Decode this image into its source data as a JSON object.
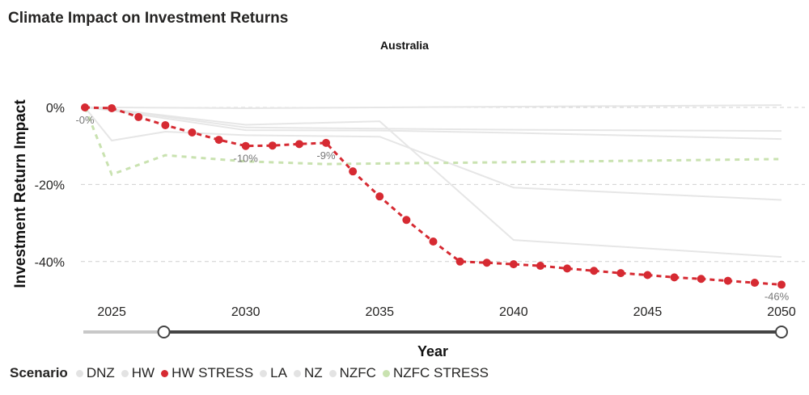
{
  "header": {
    "title": "Climate Impact on Investment Returns",
    "subtitle": "Australia"
  },
  "chart_data": {
    "type": "line",
    "title": "Australia",
    "xlabel": "Year",
    "ylabel": "Investment Return Impact",
    "xlim": [
      2024,
      2050
    ],
    "ylim": [
      -50,
      3
    ],
    "x_ticks": [
      "2025",
      "2030",
      "2035",
      "2040",
      "2045",
      "2050"
    ],
    "y_ticks": [
      "0%",
      "-20%",
      "-40%"
    ],
    "y_tick_values": [
      0,
      -20,
      -40
    ],
    "grid": "horizontal dashed",
    "legend_title": "Scenario",
    "legend_position": "bottom-left",
    "series": [
      {
        "name": "DNZ",
        "color": "#e6e6e6",
        "style": "solid",
        "x": [
          2024,
          2025,
          2030,
          2035,
          2040,
          2050
        ],
        "y": [
          0,
          0,
          -0.2,
          0,
          0.2,
          0.6
        ]
      },
      {
        "name": "HW",
        "color": "#e6e6e6",
        "style": "solid",
        "x": [
          2024,
          2025,
          2030,
          2035,
          2040,
          2050
        ],
        "y": [
          0,
          -0.5,
          -4.5,
          -3.6,
          -34.4,
          -38.8
        ]
      },
      {
        "name": "HW STRESS",
        "color": "#d62a32",
        "style": "dotted-markers",
        "x": [
          2024,
          2025,
          2026,
          2027,
          2028,
          2029,
          2030,
          2031,
          2032,
          2033,
          2034,
          2035,
          2036,
          2037,
          2038,
          2039,
          2040,
          2041,
          2042,
          2043,
          2044,
          2045,
          2046,
          2047,
          2048,
          2049,
          2050
        ],
        "y": [
          0,
          -0.2,
          -2.5,
          -4.6,
          -6.5,
          -8.4,
          -10,
          -9.9,
          -9.5,
          -9.2,
          -16.6,
          -23.1,
          -29.2,
          -34.8,
          -40,
          -40.3,
          -40.7,
          -41.1,
          -41.8,
          -42.4,
          -43,
          -43.5,
          -44.1,
          -44.5,
          -45,
          -45.5,
          -46
        ],
        "data_labels": [
          {
            "x": 2024,
            "text": "-0%"
          },
          {
            "x": 2030,
            "text": "-10%"
          },
          {
            "x": 2033,
            "text": "-9%"
          },
          {
            "x": 2050,
            "text": "-46%"
          }
        ]
      },
      {
        "name": "LA",
        "color": "#e6e6e6",
        "style": "solid",
        "x": [
          2024,
          2025,
          2030,
          2035,
          2040,
          2050
        ],
        "y": [
          0,
          -0.5,
          -5.2,
          -5.5,
          -5.8,
          -6.1
        ]
      },
      {
        "name": "NZ",
        "color": "#e6e6e6",
        "style": "solid",
        "x": [
          2024,
          2025,
          2030,
          2035,
          2040,
          2050
        ],
        "y": [
          0,
          -0.8,
          -5.9,
          -6,
          -6.6,
          -8.2
        ]
      },
      {
        "name": "NZFC",
        "color": "#e6e6e6",
        "style": "solid",
        "x": [
          2024,
          2025,
          2027,
          2030,
          2035,
          2040,
          2050
        ],
        "y": [
          0,
          -8.6,
          -6.3,
          -7.2,
          -7.6,
          -20.8,
          -24
        ]
      },
      {
        "name": "NZFC STRESS",
        "color": "#c9e2b0",
        "style": "dashed",
        "x": [
          2024,
          2025,
          2027,
          2030,
          2033,
          2040,
          2050
        ],
        "y": [
          0,
          -17.4,
          -12.4,
          -14,
          -14.7,
          -14.2,
          -13.4
        ]
      }
    ],
    "year_slider": {
      "min": 2024,
      "max": 2050,
      "from": 2027,
      "to": 2050
    }
  }
}
